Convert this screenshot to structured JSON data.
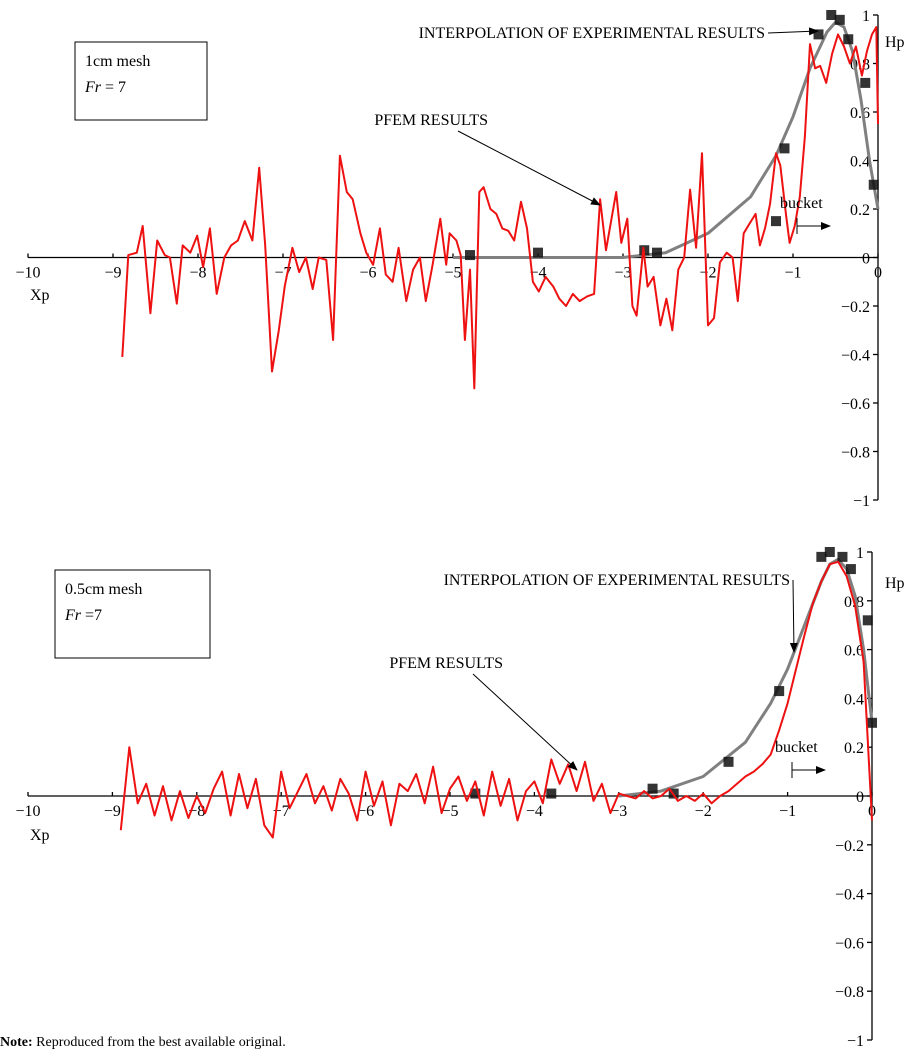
{
  "chart_data": [
    {
      "type": "line",
      "box_text": [
        "1cm mesh",
        "Fr",
        " = 7"
      ],
      "x_label": "Xp",
      "y_label": "Hp",
      "bucket_label": "bucket",
      "xlim": [
        -10,
        0
      ],
      "ylim": [
        -1,
        1
      ],
      "xticks": [
        {
          "value": -10,
          "label": "−10"
        },
        {
          "value": -9,
          "label": "−9"
        },
        {
          "value": -8,
          "label": "−8"
        },
        {
          "value": -7,
          "label": "−7"
        },
        {
          "value": -6,
          "label": "−6"
        },
        {
          "value": -5,
          "label": "−5"
        },
        {
          "value": -4,
          "label": "−4"
        },
        {
          "value": -3,
          "label": "−3"
        },
        {
          "value": -2,
          "label": "−2"
        },
        {
          "value": -1,
          "label": "−1"
        },
        0
      ],
      "yticks": [
        1,
        0.8,
        0.6,
        0.4,
        0.2,
        0,
        {
          "value": -0.2,
          "label": "−0.2"
        },
        {
          "value": -0.4,
          "label": "−0.4"
        },
        {
          "value": -0.6,
          "label": "−0.6"
        },
        {
          "value": -0.8,
          "label": "−0.8"
        },
        {
          "value": -1,
          "label": "−1"
        }
      ],
      "series": [
        {
          "name": "INTERPOLATION OF EXPERIMENTAL RESULTS",
          "style": "line",
          "color": "#808080",
          "x": [
            -5,
            -4,
            -3,
            -2.5,
            -2,
            -1.5,
            -1.2,
            -1,
            -0.8,
            -0.6,
            -0.5,
            -0.4,
            -0.3,
            -0.2,
            -0.1,
            0
          ],
          "values": [
            0,
            0,
            0,
            0.02,
            0.1,
            0.25,
            0.42,
            0.58,
            0.78,
            0.93,
            0.97,
            0.95,
            0.85,
            0.65,
            0.4,
            0.2
          ]
        },
        {
          "style": "markers",
          "color": "#111111",
          "x": [
            -4.8,
            -4,
            -2.75,
            -2.6,
            -1.2,
            -1.1,
            -0.7,
            -0.55,
            -0.45,
            -0.35,
            -0.15,
            -0.05
          ],
          "values": [
            0.01,
            0.02,
            0.03,
            0.02,
            0.15,
            0.45,
            0.92,
            1.0,
            0.98,
            0.9,
            0.72,
            0.3
          ]
        },
        {
          "name": "PFEM RESULTS",
          "style": "line",
          "color": "#ee1111",
          "x": [
            -8.89,
            -8.82,
            -8.72,
            -8.65,
            -8.56,
            -8.48,
            -8.39,
            -8.33,
            -8.25,
            -8.18,
            -8.09,
            -8.01,
            -7.94,
            -7.86,
            -7.78,
            -7.69,
            -7.61,
            -7.53,
            -7.45,
            -7.36,
            -7.28,
            -7.21,
            -7.13,
            -7.05,
            -6.98,
            -6.89,
            -6.81,
            -6.73,
            -6.65,
            -6.58,
            -6.49,
            -6.41,
            -6.33,
            -6.25,
            -6.18,
            -6.09,
            -6.02,
            -5.94,
            -5.86,
            -5.79,
            -5.71,
            -5.64,
            -5.55,
            -5.47,
            -5.39,
            -5.32,
            -5.24,
            -5.15,
            -5.08,
            -5.04,
            -4.96,
            -4.91,
            -4.86,
            -4.8,
            -4.75,
            -4.69,
            -4.64,
            -4.56,
            -4.49,
            -4.42,
            -4.35,
            -4.28,
            -4.2,
            -4.13,
            -4.06,
            -3.99,
            -3.91,
            -3.82,
            -3.75,
            -3.67,
            -3.59,
            -3.51,
            -3.42,
            -3.34,
            -3.27,
            -3.2,
            -3.14,
            -3.08,
            -3.02,
            -2.95,
            -2.89,
            -2.84,
            -2.76,
            -2.71,
            -2.64,
            -2.56,
            -2.49,
            -2.42,
            -2.35,
            -2.28,
            -2.21,
            -2.14,
            -2.07,
            -2.0,
            -1.93,
            -1.86,
            -1.78,
            -1.71,
            -1.65,
            -1.58,
            -1.51,
            -1.44,
            -1.39,
            -1.33,
            -1.27,
            -1.2,
            -1.15,
            -1.08,
            -1.04,
            -0.98,
            -0.92,
            -0.86,
            -0.8,
            -0.74,
            -0.68,
            -0.61,
            -0.54,
            -0.47,
            -0.4,
            -0.33,
            -0.26,
            -0.19,
            -0.13,
            -0.07,
            -0.02,
            0
          ],
          "values": [
            -0.41,
            0.01,
            0.02,
            0.13,
            -0.23,
            0.07,
            0.01,
            0.0,
            -0.19,
            0.05,
            0.02,
            0.09,
            -0.04,
            0.12,
            -0.15,
            0.0,
            0.05,
            0.07,
            0.15,
            0.07,
            0.37,
            0.05,
            -0.47,
            -0.3,
            -0.12,
            0.04,
            -0.06,
            0.0,
            -0.13,
            0.0,
            -0.01,
            -0.34,
            0.42,
            0.27,
            0.24,
            0.1,
            0.02,
            -0.03,
            0.12,
            -0.07,
            -0.1,
            0.04,
            -0.18,
            -0.05,
            0.0,
            -0.18,
            -0.03,
            0.16,
            -0.03,
            0.1,
            0.07,
            0.01,
            -0.34,
            -0.05,
            -0.54,
            0.27,
            0.29,
            0.2,
            0.18,
            0.12,
            0.11,
            0.07,
            0.23,
            0.12,
            -0.1,
            -0.14,
            -0.08,
            -0.12,
            -0.17,
            -0.2,
            -0.15,
            -0.18,
            -0.16,
            -0.15,
            0.24,
            0.03,
            0.15,
            0.27,
            0.06,
            0.16,
            -0.2,
            -0.24,
            0.04,
            -0.12,
            -0.08,
            -0.28,
            -0.17,
            -0.3,
            -0.05,
            0.0,
            0.28,
            0.04,
            0.43,
            -0.28,
            -0.25,
            -0.02,
            0.02,
            0.0,
            -0.18,
            0.1,
            0.14,
            0.18,
            0.05,
            0.12,
            0.22,
            0.43,
            0.38,
            0.17,
            0.06,
            0.13,
            0.25,
            0.5,
            0.88,
            0.78,
            0.79,
            0.72,
            0.84,
            0.92,
            0.87,
            0.8,
            0.87,
            0.75,
            0.85,
            0.92,
            0.95,
            0.55
          ]
        }
      ]
    },
    {
      "type": "line",
      "box_text": [
        "0.5cm mesh",
        "Fr",
        " =7"
      ],
      "x_label": "Xp",
      "y_label": "Hp",
      "bucket_label": "bucket",
      "xlim": [
        -10,
        0
      ],
      "ylim": [
        -1,
        1
      ],
      "xticks": [
        {
          "value": -10,
          "label": "−10"
        },
        {
          "value": -9,
          "label": "−9"
        },
        {
          "value": -8,
          "label": "−8"
        },
        {
          "value": -7,
          "label": "−7"
        },
        {
          "value": -6,
          "label": "−6"
        },
        {
          "value": -5,
          "label": "−5"
        },
        {
          "value": -4,
          "label": "−4"
        },
        {
          "value": -3,
          "label": "−3"
        },
        {
          "value": -2,
          "label": "−2"
        },
        {
          "value": -1,
          "label": "−1"
        },
        0
      ],
      "yticks": [
        1,
        0.8,
        0.6,
        0.4,
        0.2,
        0,
        {
          "value": -0.2,
          "label": "−0.2"
        },
        {
          "value": -0.4,
          "label": "−0.4"
        },
        {
          "value": -0.6,
          "label": "−0.6"
        },
        {
          "value": -0.8,
          "label": "−0.8"
        },
        {
          "value": -1,
          "label": "−1"
        }
      ],
      "series": [
        {
          "name": "INTERPOLATION OF EXPERIMENTAL RESULTS",
          "style": "line",
          "color": "#808080",
          "x": [
            -3,
            -2.5,
            -2,
            -1.5,
            -1.2,
            -1,
            -0.8,
            -0.6,
            -0.5,
            -0.4,
            -0.3,
            -0.2,
            -0.1,
            0
          ],
          "values": [
            0,
            0.02,
            0.08,
            0.22,
            0.38,
            0.52,
            0.7,
            0.88,
            0.95,
            0.97,
            0.93,
            0.82,
            0.6,
            0.3
          ]
        },
        {
          "style": "markers",
          "color": "#111111",
          "x": [
            -4.7,
            -3.8,
            -2.6,
            -2.35,
            -1.7,
            -1.1,
            -0.6,
            -0.5,
            -0.35,
            -0.25,
            -0.05,
            0
          ],
          "values": [
            0.01,
            0.01,
            0.03,
            0.01,
            0.14,
            0.43,
            0.98,
            1.0,
            0.98,
            0.93,
            0.72,
            0.3
          ]
        },
        {
          "name": "PFEM RESULTS",
          "style": "line",
          "color": "#ee1111",
          "x": [
            -8.9,
            -8.8,
            -8.7,
            -8.6,
            -8.5,
            -8.4,
            -8.3,
            -8.2,
            -8.1,
            -8.0,
            -7.9,
            -7.8,
            -7.7,
            -7.6,
            -7.5,
            -7.4,
            -7.3,
            -7.2,
            -7.1,
            -7.0,
            -6.9,
            -6.8,
            -6.7,
            -6.6,
            -6.5,
            -6.4,
            -6.3,
            -6.2,
            -6.1,
            -6.0,
            -5.9,
            -5.8,
            -5.7,
            -5.6,
            -5.5,
            -5.4,
            -5.3,
            -5.2,
            -5.1,
            -5.0,
            -4.9,
            -4.8,
            -4.7,
            -4.6,
            -4.5,
            -4.4,
            -4.3,
            -4.2,
            -4.1,
            -4.0,
            -3.9,
            -3.8,
            -3.7,
            -3.6,
            -3.5,
            -3.4,
            -3.3,
            -3.2,
            -3.1,
            -3.0,
            -2.9,
            -2.8,
            -2.7,
            -2.6,
            -2.5,
            -2.4,
            -2.3,
            -2.2,
            -2.1,
            -2.0,
            -1.9,
            -1.8,
            -1.7,
            -1.6,
            -1.5,
            -1.4,
            -1.3,
            -1.2,
            -1.1,
            -1.0,
            -0.9,
            -0.8,
            -0.7,
            -0.6,
            -0.5,
            -0.4,
            -0.3,
            -0.2,
            -0.1,
            0
          ],
          "values": [
            -0.14,
            0.2,
            -0.03,
            0.05,
            -0.08,
            0.04,
            -0.1,
            0.02,
            -0.09,
            0.0,
            -0.07,
            0.03,
            0.1,
            -0.08,
            0.09,
            -0.05,
            0.07,
            -0.12,
            -0.17,
            0.1,
            -0.05,
            0.02,
            0.09,
            -0.03,
            0.04,
            -0.06,
            0.07,
            0.01,
            -0.1,
            0.1,
            -0.04,
            0.06,
            -0.12,
            0.05,
            0.02,
            0.09,
            -0.03,
            0.12,
            -0.07,
            0.03,
            0.08,
            -0.02,
            0.06,
            -0.08,
            0.1,
            -0.04,
            0.07,
            -0.1,
            0.02,
            0.06,
            -0.03,
            0.15,
            0.05,
            0.13,
            0.02,
            0.14,
            -0.02,
            0.05,
            -0.07,
            0.01,
            0.0,
            -0.01,
            0.02,
            -0.01,
            0.0,
            0.03,
            -0.02,
            0.0,
            -0.02,
            0.01,
            -0.03,
            0.0,
            0.02,
            0.05,
            0.08,
            0.1,
            0.13,
            0.17,
            0.27,
            0.38,
            0.52,
            0.66,
            0.79,
            0.88,
            0.95,
            0.96,
            0.9,
            0.78,
            0.55,
            -0.1
          ]
        }
      ]
    }
  ],
  "note": [
    "Note:",
    " Reproduced from the best available original."
  ]
}
